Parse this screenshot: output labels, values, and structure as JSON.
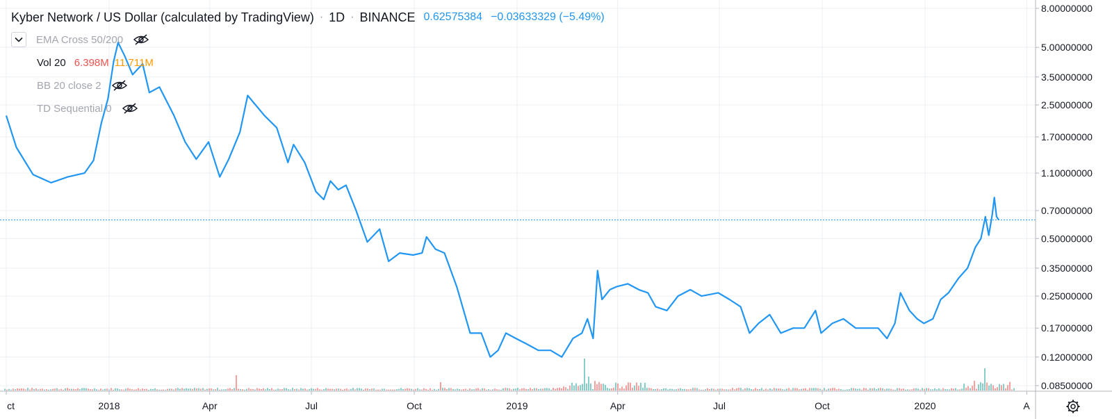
{
  "header": {
    "symbol_title": "Kyber Network / US Dollar (calculated by TradingView)",
    "interval": "1D",
    "exchange": "BINANCE",
    "last_price": "0.62575384",
    "change": "−0.03633329 (−5.49%)"
  },
  "indicators": [
    {
      "label": "EMA Cross 50/200",
      "hidden": true
    },
    {
      "label": "Vol 20",
      "value_a": "6.398M",
      "value_b": "11.711M"
    },
    {
      "label": "BB 20 close 2",
      "hidden": true
    },
    {
      "label": "TD Sequential 0",
      "hidden": true
    }
  ],
  "colors": {
    "line": "#2196f3",
    "vol_up": "#26a69a",
    "vol_down": "#ef5350",
    "vol_b": "#ff9800",
    "grid": "#eceff3",
    "axis_text": "#131722",
    "price_line": "#2196f3"
  },
  "icons": [
    "chevron-down-icon",
    "eye-slash-icon",
    "gear-icon"
  ],
  "chart_data": {
    "type": "line",
    "scale": "log",
    "grid": true,
    "x_tick_labels": [
      "ct",
      "2018",
      "Apr",
      "Jul",
      "Oct",
      "2019",
      "Apr",
      "Jul",
      "Oct",
      "2020",
      "A"
    ],
    "y_tick_labels": [
      "8.00000000",
      "5.00000000",
      "3.50000000",
      "2.50000000",
      "1.70000000",
      "1.10000000",
      "0.70000000",
      "0.50000000",
      "0.35000000",
      "0.25000000",
      "0.17000000",
      "0.12000000",
      "0.08500000"
    ],
    "y_ticks": [
      8.0,
      5.0,
      3.5,
      2.5,
      1.7,
      1.1,
      0.7,
      0.5,
      0.35,
      0.25,
      0.17,
      0.12,
      0.085
    ],
    "x_range": [
      "2017-10-01",
      "2020-04-01"
    ],
    "current_value": 0.62575384,
    "series": [
      {
        "values": [
          [
            "2017-10-01",
            2.2
          ],
          [
            "2017-10-10",
            1.5
          ],
          [
            "2017-10-25",
            1.08
          ],
          [
            "2017-11-10",
            0.98
          ],
          [
            "2017-11-25",
            1.05
          ],
          [
            "2017-12-10",
            1.1
          ],
          [
            "2017-12-18",
            1.28
          ],
          [
            "2017-12-25",
            2.0
          ],
          [
            "2017-12-31",
            2.7
          ],
          [
            "2018-01-05",
            4.2
          ],
          [
            "2018-01-09",
            5.3
          ],
          [
            "2018-01-15",
            4.5
          ],
          [
            "2018-01-22",
            3.6
          ],
          [
            "2018-01-31",
            4.1
          ],
          [
            "2018-02-06",
            2.9
          ],
          [
            "2018-02-15",
            3.1
          ],
          [
            "2018-02-28",
            2.2
          ],
          [
            "2018-03-10",
            1.6
          ],
          [
            "2018-03-20",
            1.3
          ],
          [
            "2018-03-31",
            1.6
          ],
          [
            "2018-04-10",
            1.05
          ],
          [
            "2018-04-18",
            1.3
          ],
          [
            "2018-04-28",
            1.8
          ],
          [
            "2018-05-05",
            2.8
          ],
          [
            "2018-05-12",
            2.5
          ],
          [
            "2018-05-20",
            2.2
          ],
          [
            "2018-05-31",
            1.9
          ],
          [
            "2018-06-10",
            1.25
          ],
          [
            "2018-06-15",
            1.55
          ],
          [
            "2018-06-25",
            1.25
          ],
          [
            "2018-07-05",
            0.88
          ],
          [
            "2018-07-12",
            0.8
          ],
          [
            "2018-07-18",
            1.0
          ],
          [
            "2018-07-25",
            0.9
          ],
          [
            "2018-08-01",
            0.95
          ],
          [
            "2018-08-10",
            0.7
          ],
          [
            "2018-08-20",
            0.48
          ],
          [
            "2018-08-31",
            0.56
          ],
          [
            "2018-09-08",
            0.38
          ],
          [
            "2018-09-18",
            0.42
          ],
          [
            "2018-09-30",
            0.41
          ],
          [
            "2018-10-08",
            0.42
          ],
          [
            "2018-10-12",
            0.51
          ],
          [
            "2018-10-20",
            0.44
          ],
          [
            "2018-10-28",
            0.42
          ],
          [
            "2018-11-08",
            0.28
          ],
          [
            "2018-11-20",
            0.16
          ],
          [
            "2018-11-30",
            0.16
          ],
          [
            "2018-12-08",
            0.12
          ],
          [
            "2018-12-15",
            0.13
          ],
          [
            "2018-12-22",
            0.16
          ],
          [
            "2018-12-31",
            0.15
          ],
          [
            "2019-01-10",
            0.14
          ],
          [
            "2019-01-20",
            0.13
          ],
          [
            "2019-01-31",
            0.13
          ],
          [
            "2019-02-10",
            0.12
          ],
          [
            "2019-02-20",
            0.15
          ],
          [
            "2019-02-28",
            0.16
          ],
          [
            "2019-03-05",
            0.19
          ],
          [
            "2019-03-10",
            0.15
          ],
          [
            "2019-03-14",
            0.34
          ],
          [
            "2019-03-18",
            0.24
          ],
          [
            "2019-03-25",
            0.27
          ],
          [
            "2019-03-31",
            0.28
          ],
          [
            "2019-04-10",
            0.29
          ],
          [
            "2019-04-20",
            0.27
          ],
          [
            "2019-04-28",
            0.26
          ],
          [
            "2019-05-05",
            0.22
          ],
          [
            "2019-05-15",
            0.21
          ],
          [
            "2019-05-25",
            0.25
          ],
          [
            "2019-06-05",
            0.27
          ],
          [
            "2019-06-15",
            0.25
          ],
          [
            "2019-06-30",
            0.26
          ],
          [
            "2019-07-10",
            0.24
          ],
          [
            "2019-07-20",
            0.22
          ],
          [
            "2019-07-28",
            0.16
          ],
          [
            "2019-08-05",
            0.18
          ],
          [
            "2019-08-15",
            0.2
          ],
          [
            "2019-08-25",
            0.16
          ],
          [
            "2019-09-05",
            0.17
          ],
          [
            "2019-09-15",
            0.17
          ],
          [
            "2019-09-25",
            0.21
          ],
          [
            "2019-09-30",
            0.16
          ],
          [
            "2019-10-10",
            0.18
          ],
          [
            "2019-10-20",
            0.19
          ],
          [
            "2019-10-31",
            0.17
          ],
          [
            "2019-11-10",
            0.17
          ],
          [
            "2019-11-20",
            0.17
          ],
          [
            "2019-11-28",
            0.15
          ],
          [
            "2019-12-05",
            0.18
          ],
          [
            "2019-12-10",
            0.26
          ],
          [
            "2019-12-18",
            0.21
          ],
          [
            "2019-12-25",
            0.19
          ],
          [
            "2019-12-31",
            0.18
          ],
          [
            "2020-01-08",
            0.19
          ],
          [
            "2020-01-15",
            0.24
          ],
          [
            "2020-01-22",
            0.26
          ],
          [
            "2020-01-31",
            0.31
          ],
          [
            "2020-02-08",
            0.35
          ],
          [
            "2020-02-15",
            0.45
          ],
          [
            "2020-02-20",
            0.5
          ],
          [
            "2020-02-24",
            0.65
          ],
          [
            "2020-02-27",
            0.52
          ],
          [
            "2020-03-01",
            0.66
          ],
          [
            "2020-03-03",
            0.82
          ],
          [
            "2020-03-05",
            0.65
          ],
          [
            "2020-03-07",
            0.62575384
          ]
        ]
      }
    ]
  }
}
